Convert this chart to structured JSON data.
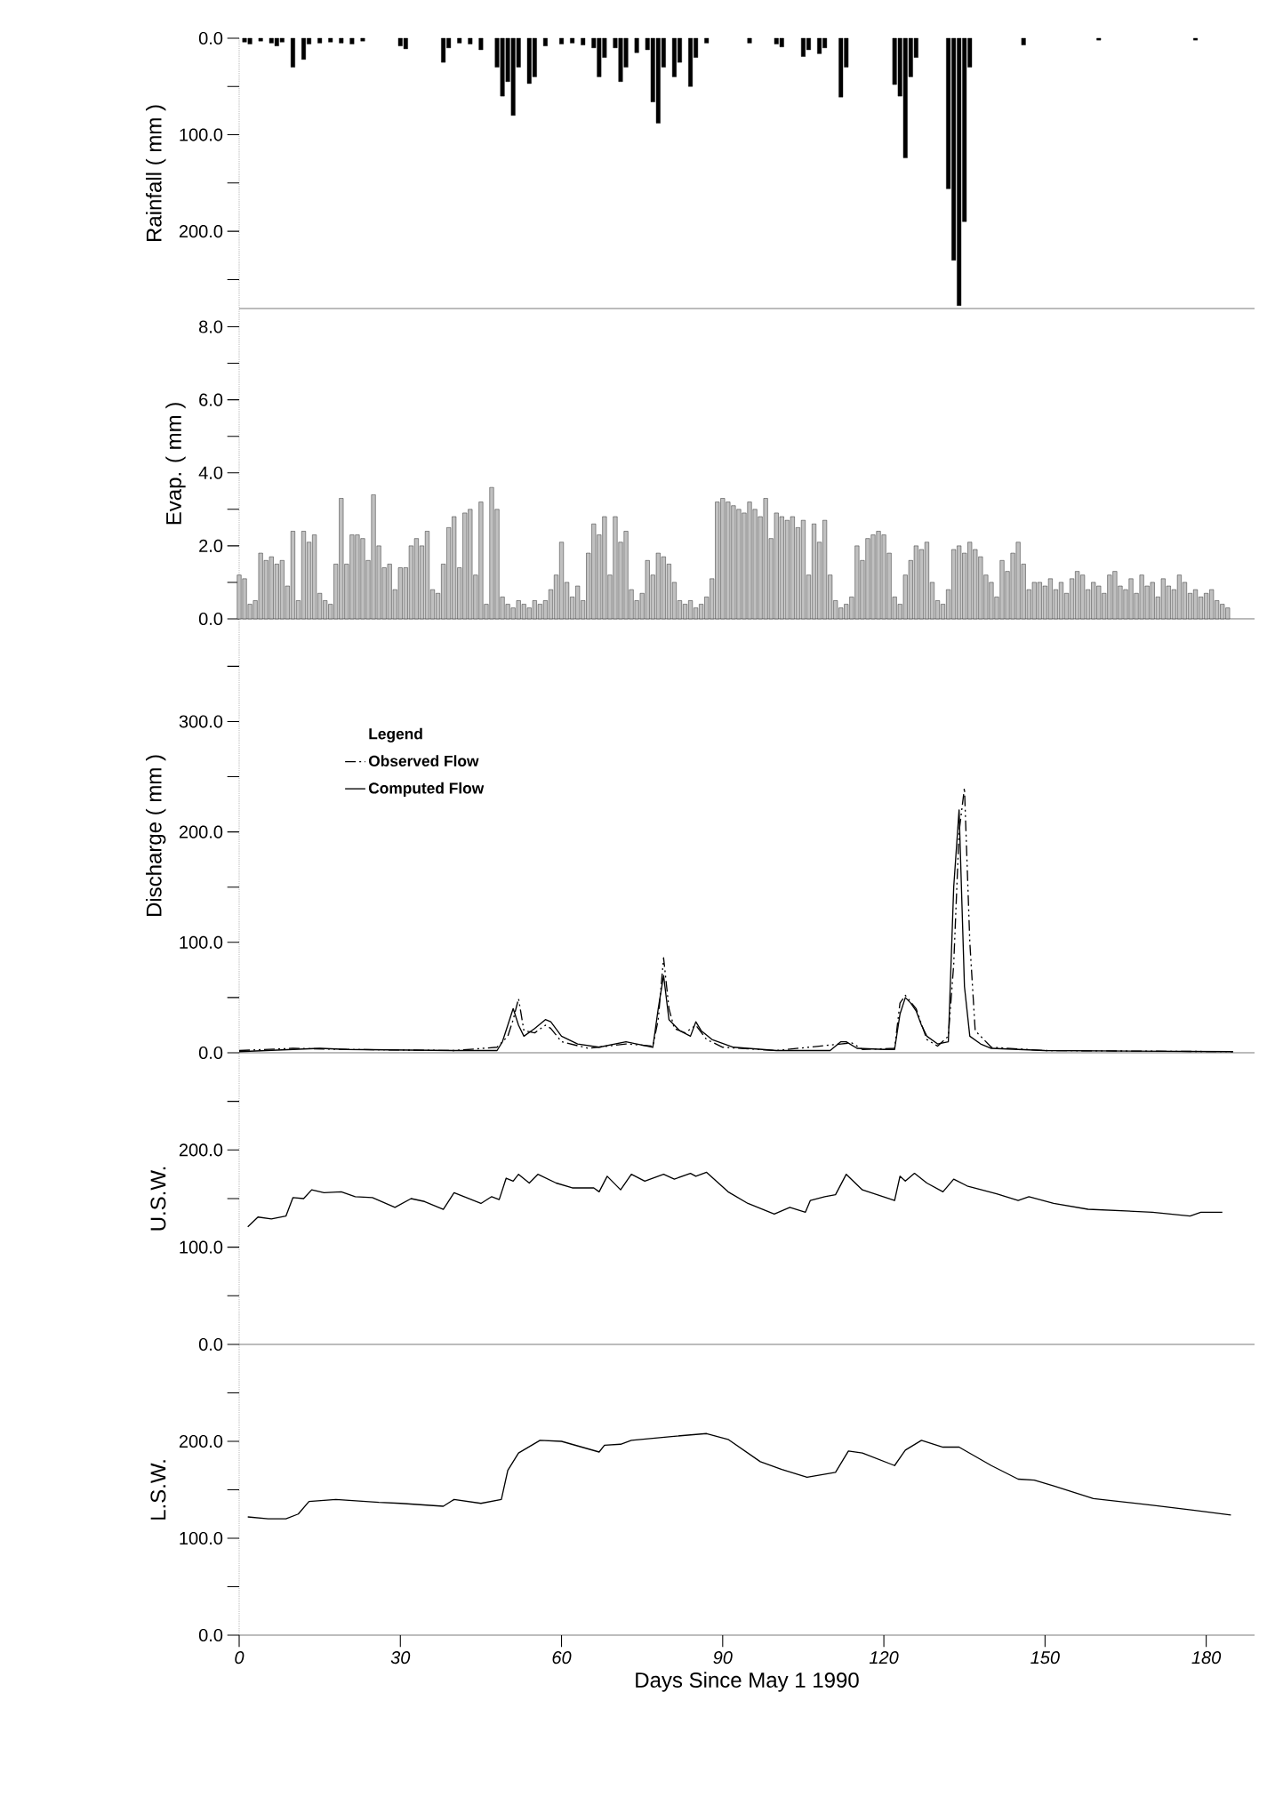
{
  "chart_data": [
    {
      "type": "bar",
      "ylabel": "Rainfall ( mm )",
      "color": "#000000",
      "xlim": [
        0,
        189
      ],
      "ylim": [
        280,
        0
      ],
      "tick_labels": "y",
      "yticks": [
        {
          "value": 0,
          "label": "0.0"
        },
        {
          "value": 50,
          "label": null
        },
        {
          "value": 100,
          "label": "100.0"
        },
        {
          "value": 150,
          "label": null
        },
        {
          "value": 200,
          "label": "200.0"
        },
        {
          "value": 250,
          "label": null
        }
      ],
      "x": [
        1,
        2,
        4,
        6,
        7,
        8,
        10,
        12,
        13,
        15,
        17,
        19,
        21,
        23,
        30,
        31,
        38,
        39,
        41,
        43,
        45,
        48,
        49,
        50,
        51,
        52,
        54,
        55,
        57,
        60,
        62,
        64,
        66,
        67,
        68,
        70,
        71,
        72,
        74,
        76,
        77,
        78,
        79,
        81,
        82,
        84,
        85,
        87,
        95,
        100,
        101,
        105,
        106,
        108,
        109,
        112,
        113,
        122,
        123,
        124,
        125,
        126,
        132,
        133,
        134,
        135,
        136,
        146,
        160,
        178
      ],
      "values": [
        4,
        6,
        3,
        5,
        8,
        4,
        30,
        22,
        6,
        5,
        4,
        5,
        6,
        3,
        8,
        11,
        25,
        10,
        5,
        6,
        12,
        30,
        60,
        45,
        80,
        30,
        47,
        40,
        8,
        6,
        5,
        7,
        10,
        40,
        20,
        10,
        45,
        30,
        15,
        12,
        66,
        88,
        30,
        40,
        25,
        50,
        20,
        5,
        5,
        6,
        9,
        19,
        12,
        16,
        10,
        61,
        30,
        48,
        60,
        124,
        40,
        20,
        156,
        230,
        277,
        190,
        30,
        7,
        2,
        2
      ]
    },
    {
      "type": "bar",
      "ylabel": "Evap. ( mm )",
      "color": "#c0c0c0",
      "xlim": [
        0,
        189
      ],
      "ylim": [
        0,
        8.5
      ],
      "tick_labels": "y",
      "yticks": [
        {
          "value": 0,
          "label": "0.0"
        },
        {
          "value": 1,
          "label": null
        },
        {
          "value": 2,
          "label": "2.0"
        },
        {
          "value": 3,
          "label": null
        },
        {
          "value": 4,
          "label": "4.0"
        },
        {
          "value": 5,
          "label": null
        },
        {
          "value": 6,
          "label": "6.0"
        },
        {
          "value": 7,
          "label": null
        },
        {
          "value": 8,
          "label": "8.0"
        }
      ],
      "x": [
        0,
        1,
        2,
        3,
        4,
        5,
        6,
        7,
        8,
        9,
        10,
        11,
        12,
        13,
        14,
        15,
        16,
        17,
        18,
        19,
        20,
        21,
        22,
        23,
        24,
        25,
        26,
        27,
        28,
        29,
        30,
        31,
        32,
        33,
        34,
        35,
        36,
        37,
        38,
        39,
        40,
        41,
        42,
        43,
        44,
        45,
        46,
        47,
        48,
        49,
        50,
        51,
        52,
        53,
        54,
        55,
        56,
        57,
        58,
        59,
        60,
        61,
        62,
        63,
        64,
        65,
        66,
        67,
        68,
        69,
        70,
        71,
        72,
        73,
        74,
        75,
        76,
        77,
        78,
        79,
        80,
        81,
        82,
        83,
        84,
        85,
        86,
        87,
        88,
        89,
        90,
        91,
        92,
        93,
        94,
        95,
        96,
        97,
        98,
        99,
        100,
        101,
        102,
        103,
        104,
        105,
        106,
        107,
        108,
        109,
        110,
        111,
        112,
        113,
        114,
        115,
        116,
        117,
        118,
        119,
        120,
        121,
        122,
        123,
        124,
        125,
        126,
        127,
        128,
        129,
        130,
        131,
        132,
        133,
        134,
        135,
        136,
        137,
        138,
        139,
        140,
        141,
        142,
        143,
        144,
        145,
        146,
        147,
        148,
        149,
        150,
        151,
        152,
        153,
        154,
        155,
        156,
        157,
        158,
        159,
        160,
        161,
        162,
        163,
        164,
        165,
        166,
        167,
        168,
        169,
        170,
        171,
        172,
        173,
        174,
        175,
        176,
        177,
        178,
        179,
        180,
        181,
        182,
        183,
        184
      ],
      "values": [
        1.2,
        1.1,
        0.4,
        0.5,
        1.8,
        1.6,
        1.7,
        1.5,
        1.6,
        0.9,
        2.4,
        0.5,
        2.4,
        2.1,
        2.3,
        0.7,
        0.5,
        0.4,
        1.5,
        3.3,
        1.5,
        2.3,
        2.3,
        2.2,
        1.6,
        3.4,
        2.0,
        1.4,
        1.5,
        0.8,
        1.4,
        1.4,
        2.0,
        2.2,
        2.0,
        2.4,
        0.8,
        0.7,
        1.5,
        2.5,
        2.8,
        1.4,
        2.9,
        3.0,
        1.2,
        3.2,
        0.4,
        3.6,
        3.0,
        0.6,
        0.4,
        0.3,
        0.5,
        0.4,
        0.3,
        0.5,
        0.4,
        0.5,
        0.8,
        1.2,
        2.1,
        1.0,
        0.6,
        0.9,
        0.5,
        1.8,
        2.6,
        2.3,
        2.8,
        1.2,
        2.8,
        2.1,
        2.4,
        0.8,
        0.5,
        0.7,
        1.6,
        1.2,
        1.8,
        1.7,
        1.5,
        1.0,
        0.5,
        0.4,
        0.5,
        0.3,
        0.4,
        0.6,
        1.1,
        3.2,
        3.3,
        3.2,
        3.1,
        3.0,
        2.9,
        3.2,
        3.0,
        2.8,
        3.3,
        2.2,
        2.9,
        2.8,
        2.7,
        2.8,
        2.5,
        2.7,
        1.2,
        2.6,
        2.1,
        2.7,
        1.2,
        0.5,
        0.3,
        0.4,
        0.6,
        2.0,
        1.6,
        2.2,
        2.3,
        2.4,
        2.3,
        1.8,
        0.6,
        0.4,
        1.2,
        1.6,
        2.0,
        1.9,
        2.1,
        1.0,
        0.5,
        0.4,
        0.8,
        1.9,
        2.0,
        1.8,
        2.1,
        1.9,
        1.7,
        1.2,
        1.0,
        0.6,
        1.6,
        1.3,
        1.8,
        2.1,
        1.5,
        0.8,
        1.0,
        1.0,
        0.9,
        1.1,
        0.8,
        1.0,
        0.7,
        1.1,
        1.3,
        1.2,
        0.8,
        1.0,
        0.9,
        0.7,
        1.2,
        1.3,
        0.9,
        0.8,
        1.1,
        0.7,
        1.2,
        0.9,
        1.0,
        0.6,
        1.1,
        0.9,
        0.8,
        1.2,
        1.0,
        0.7,
        0.8,
        0.6,
        0.7,
        0.8,
        0.5,
        0.4,
        0.3
      ]
    },
    {
      "type": "line",
      "ylabel": "Discharge ( mm )",
      "xlim": [
        0,
        189
      ],
      "ylim": [
        0,
        393
      ],
      "tick_labels": "y",
      "legend": "top left",
      "legend_title": "Legend",
      "yticks": [
        {
          "value": 0,
          "label": "0.0"
        },
        {
          "value": 50,
          "label": null
        },
        {
          "value": 100,
          "label": "100.0"
        },
        {
          "value": 150,
          "label": null
        },
        {
          "value": 200,
          "label": "200.0"
        },
        {
          "value": 250,
          "label": null
        },
        {
          "value": 300,
          "label": "300.0"
        },
        {
          "value": 350,
          "label": null
        }
      ],
      "series": [
        {
          "name": "Observed Flow",
          "color": "#000000",
          "line_style": "dashed",
          "x": [
            0,
            10,
            20,
            40,
            48,
            50,
            51,
            52,
            53,
            55,
            57,
            58,
            60,
            65,
            72,
            77,
            78,
            79,
            80,
            81,
            83,
            85,
            87,
            90,
            100,
            112,
            114,
            116,
            122,
            123,
            124,
            126,
            128,
            130,
            132,
            133,
            134,
            135,
            136,
            137,
            140,
            150,
            185
          ],
          "values": [
            2,
            4,
            3,
            2,
            5,
            15,
            30,
            49,
            20,
            18,
            25,
            22,
            10,
            4,
            8,
            6,
            30,
            86,
            40,
            22,
            18,
            25,
            12,
            5,
            2,
            8,
            9,
            3,
            4,
            45,
            52,
            40,
            12,
            6,
            15,
            80,
            200,
            240,
            100,
            20,
            5,
            2,
            1
          ]
        },
        {
          "name": "Computed Flow",
          "color": "#000000",
          "line_style": "solid",
          "x": [
            0,
            10,
            15,
            20,
            40,
            48,
            49,
            50,
            51,
            52,
            53,
            55,
            57,
            58,
            60,
            63,
            67,
            72,
            74,
            77,
            78,
            79,
            80,
            81,
            82,
            84,
            85,
            86,
            88,
            92,
            100,
            110,
            112,
            113,
            115,
            120,
            122,
            123,
            124,
            125,
            126,
            127,
            128,
            130,
            132,
            133,
            134,
            135,
            136,
            138,
            140,
            150,
            185
          ],
          "values": [
            1,
            3,
            4,
            3,
            2,
            2,
            10,
            25,
            40,
            25,
            15,
            22,
            30,
            28,
            15,
            8,
            5,
            10,
            8,
            5,
            40,
            70,
            30,
            25,
            20,
            15,
            28,
            20,
            12,
            5,
            2,
            2,
            10,
            10,
            4,
            3,
            3,
            35,
            50,
            45,
            38,
            25,
            15,
            8,
            10,
            150,
            220,
            60,
            15,
            8,
            4,
            2,
            1
          ]
        }
      ]
    },
    {
      "type": "line",
      "ylabel": "U.S.W.",
      "color": "#000000",
      "xlim": [
        0,
        189
      ],
      "ylim": [
        0,
        300
      ],
      "tick_labels": "y",
      "yticks": [
        {
          "value": 0,
          "label": "0.0"
        },
        {
          "value": 50,
          "label": null
        },
        {
          "value": 100,
          "label": "100.0"
        },
        {
          "value": 150,
          "label": null
        },
        {
          "value": 200,
          "label": "200.0"
        },
        {
          "value": 250,
          "label": null
        }
      ],
      "x": [
        1.6,
        3.5,
        6,
        8.7,
        10,
        12,
        13.5,
        15.8,
        19,
        21.6,
        24.8,
        29,
        32,
        34.5,
        38,
        40,
        45,
        47,
        48.4,
        49.7,
        51,
        52,
        54,
        55.6,
        59,
        62,
        66,
        67,
        68.5,
        71,
        73,
        75.5,
        79,
        81,
        84,
        85,
        87,
        91,
        94.7,
        99.6,
        102.5,
        105.4,
        106.3,
        109,
        111,
        113,
        116,
        122,
        123,
        124,
        125.7,
        128,
        131,
        133,
        135.5,
        141,
        145,
        147,
        151.6,
        158,
        170,
        177,
        179,
        183
      ],
      "values": [
        121,
        131,
        129,
        132,
        151,
        150,
        159,
        156,
        157,
        152,
        151,
        141,
        150,
        147,
        139,
        156,
        145,
        152,
        149,
        171,
        168,
        175,
        166,
        175,
        166,
        161,
        161,
        157,
        173,
        159,
        175,
        168,
        175,
        170,
        176,
        173,
        177,
        157,
        145,
        134,
        141,
        136,
        148,
        152,
        154,
        175,
        159,
        148,
        173,
        168,
        176,
        166,
        157,
        170,
        163,
        155,
        148,
        152,
        145,
        139,
        136,
        132,
        136,
        136
      ]
    },
    {
      "type": "line",
      "ylabel": "L.S.W.",
      "xlabel": "Days Since May 1 1990",
      "color": "#000000",
      "xlim": [
        0,
        189
      ],
      "ylim": [
        0,
        300
      ],
      "xticks": [
        0,
        30,
        60,
        90,
        120,
        150,
        180
      ],
      "yticks": [
        {
          "value": 0,
          "label": "0.0"
        },
        {
          "value": 50,
          "label": null
        },
        {
          "value": 100,
          "label": "100.0"
        },
        {
          "value": 150,
          "label": null
        },
        {
          "value": 200,
          "label": "200.0"
        },
        {
          "value": 250,
          "label": null
        }
      ],
      "x": [
        1.6,
        5.4,
        8.7,
        11,
        13,
        18,
        26,
        30,
        38,
        40,
        45,
        48.8,
        50,
        52,
        56,
        60,
        67,
        68,
        71,
        73,
        80.5,
        87,
        91,
        97,
        101,
        105.7,
        111,
        113.4,
        116,
        122,
        124,
        127,
        131,
        134,
        140,
        145,
        148,
        151.6,
        159,
        170,
        177.5,
        184.6
      ],
      "values": [
        122,
        120,
        120,
        125,
        138,
        140,
        137,
        136,
        133,
        140,
        136,
        140,
        170,
        188,
        201,
        200,
        189,
        196,
        197,
        201,
        205,
        208,
        202,
        179,
        171,
        163,
        168,
        190,
        188,
        175,
        191,
        201,
        194,
        194,
        175,
        161,
        160,
        154,
        141,
        134,
        129,
        124
      ]
    }
  ]
}
